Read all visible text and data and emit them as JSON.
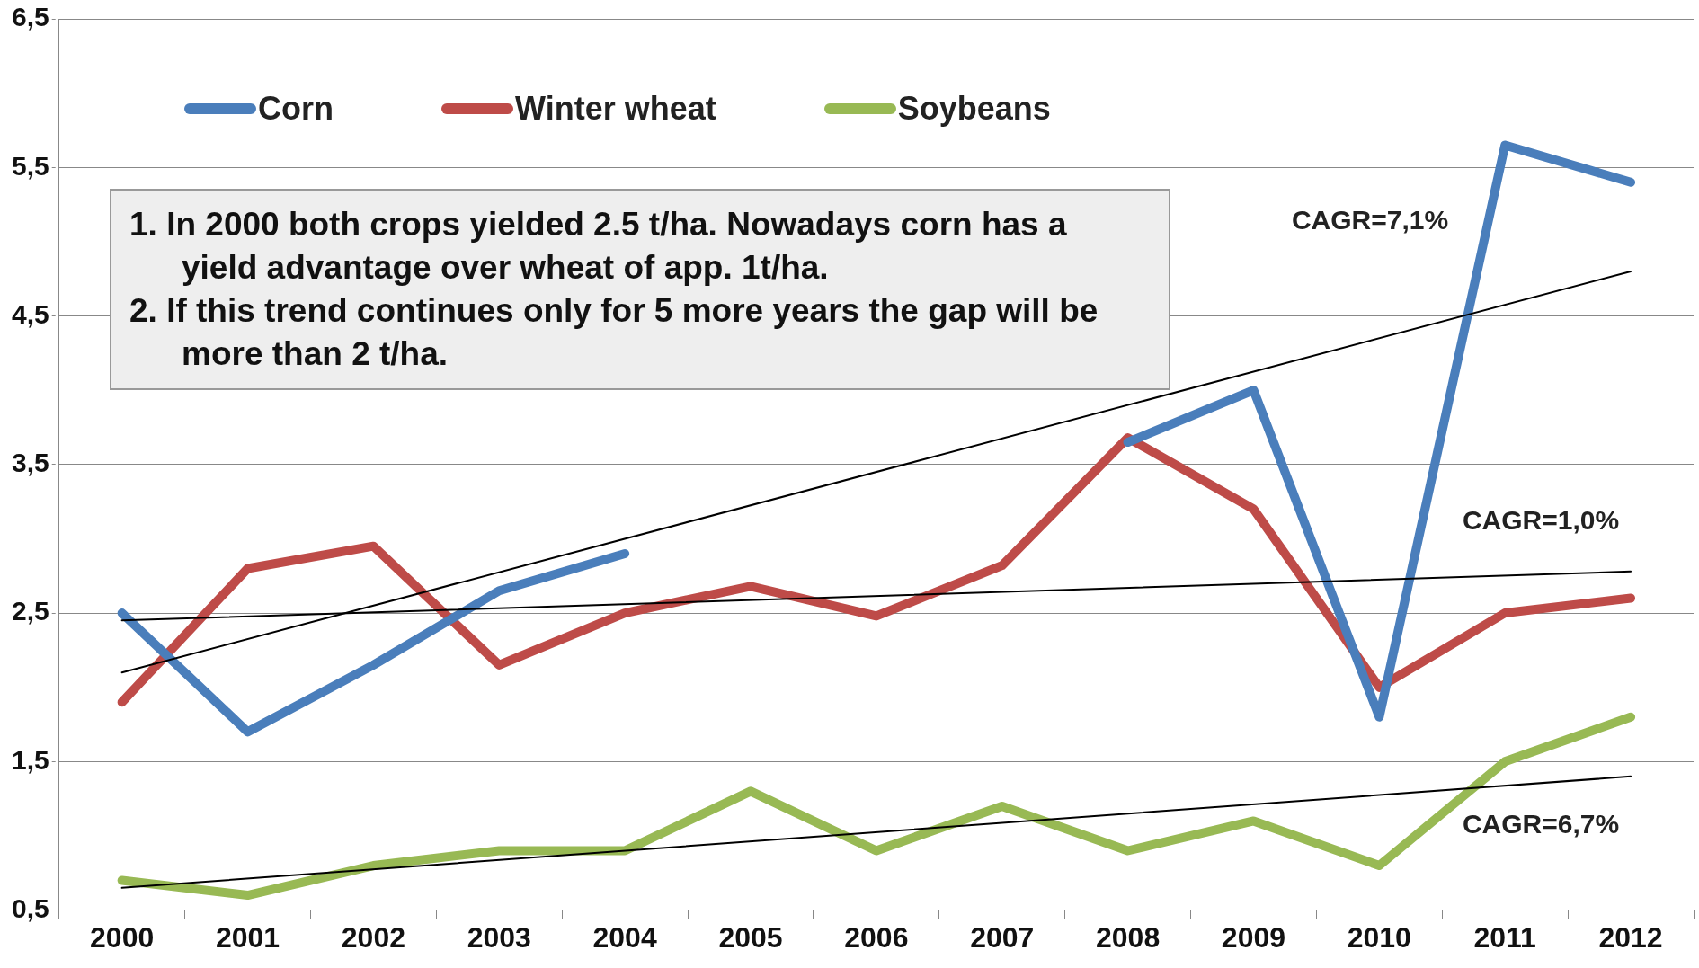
{
  "chart_data": {
    "type": "line",
    "categories": [
      "2000",
      "2001",
      "2002",
      "2003",
      "2004",
      "2005",
      "2006",
      "2007",
      "2008",
      "2009",
      "2010",
      "2011",
      "2012"
    ],
    "series": [
      {
        "name": "Corn",
        "color": "#4a7ebb",
        "values": [
          2.5,
          1.7,
          2.15,
          2.65,
          2.9,
          null,
          null,
          null,
          3.65,
          4.0,
          1.8,
          5.65,
          5.4
        ]
      },
      {
        "name": "Winter wheat",
        "color": "#be4b48",
        "values": [
          1.9,
          2.8,
          2.95,
          2.15,
          2.5,
          2.68,
          2.48,
          2.82,
          3.68,
          3.2,
          2.0,
          2.5,
          2.6
        ]
      },
      {
        "name": "Soybeans",
        "color": "#98b954",
        "values": [
          0.7,
          0.6,
          0.8,
          0.9,
          0.9,
          1.3,
          0.9,
          1.2,
          0.9,
          1.1,
          0.8,
          1.5,
          1.8
        ]
      },
      {
        "type": "line",
        "color": "#000000",
        "values": [
          2.1,
          null,
          null,
          null,
          null,
          null,
          null,
          null,
          null,
          null,
          null,
          null,
          4.8
        ]
      },
      {
        "type": "line",
        "color": "#000000",
        "values": [
          2.45,
          null,
          null,
          null,
          null,
          null,
          null,
          null,
          null,
          null,
          null,
          null,
          2.78
        ]
      },
      {
        "type": "line",
        "color": "#000000",
        "values": [
          0.65,
          null,
          null,
          null,
          null,
          null,
          null,
          null,
          null,
          null,
          null,
          null,
          1.4
        ]
      }
    ],
    "ylim": [
      0.5,
      6.5
    ],
    "yticks": [
      {
        "value": 0.5,
        "label": "0,5"
      },
      {
        "value": 1.5,
        "label": "1,5"
      },
      {
        "value": 2.5,
        "label": "2,5"
      },
      {
        "value": 3.5,
        "label": "3,5"
      },
      {
        "value": 4.5,
        "label": "4,5"
      },
      {
        "value": 5.5,
        "label": "5,5"
      },
      {
        "value": 6.5,
        "label": "6,5"
      }
    ],
    "grid": "y",
    "legend": "top left",
    "marker": "none",
    "line_style": "solid",
    "annotations": [
      "1. In 2000 both crops yielded 2.5 t/ha. Nowadays corn has a yield advantage over wheat of app. 1t/ha.",
      "2. If this trend continues only for 5 more years the gap will be more than 2 t/ha.",
      "CAGR=7,1%",
      "CAGR=1,0%",
      "CAGR=6,7%"
    ]
  }
}
